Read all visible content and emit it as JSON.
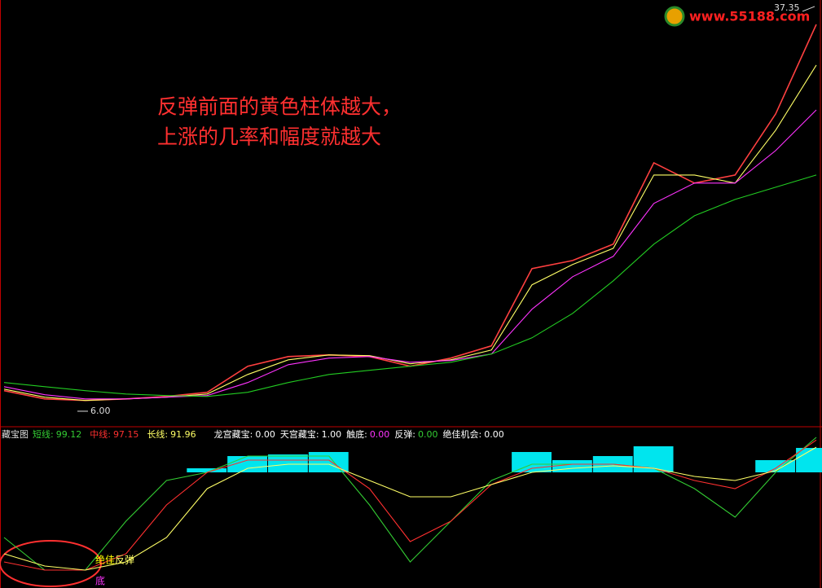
{
  "chart_data": [
    {
      "type": "line",
      "ylim": [
        4.92,
        37.98
      ],
      "series": [
        {
          "color": "#ff4040",
          "values": [
            7.6,
            6.96,
            6.84,
            6.96,
            7.15,
            7.47,
            9.5,
            10.25,
            10.38,
            10.25,
            9.5,
            10.13,
            11.08,
            17.09,
            17.72,
            18.99,
            25.32,
            23.74,
            24.37,
            29.12,
            36.08
          ]
        },
        {
          "color": "#ffff66",
          "values": [
            7.72,
            7.09,
            6.84,
            6.96,
            7.09,
            7.34,
            8.86,
            10.0,
            10.38,
            10.32,
            9.69,
            10.0,
            10.76,
            15.83,
            17.41,
            18.67,
            24.37,
            24.37,
            23.74,
            27.85,
            32.92
          ]
        },
        {
          "color": "#ff33ff",
          "values": [
            7.91,
            7.28,
            6.96,
            6.96,
            7.09,
            7.22,
            8.23,
            9.62,
            10.13,
            10.25,
            9.81,
            9.94,
            10.45,
            13.93,
            16.46,
            18.04,
            22.16,
            23.74,
            23.74,
            26.27,
            29.43
          ]
        },
        {
          "color": "#22cc22",
          "values": [
            8.23,
            7.91,
            7.6,
            7.34,
            7.22,
            7.15,
            7.47,
            8.23,
            8.86,
            9.18,
            9.5,
            9.81,
            10.45,
            11.71,
            13.61,
            16.14,
            18.99,
            21.2,
            22.47,
            23.42,
            24.37
          ]
        }
      ],
      "max_marker": 37.35,
      "min_marker": {
        "value": 6,
        "label": "6.00"
      },
      "notes": [
        "反弹前面的黄色柱体越大，",
        "上涨的几率和幅度就越大"
      ]
    },
    {
      "type": "line",
      "title": "藏宝图",
      "ylim": [
        -10,
        105
      ],
      "series": [
        {
          "name": "短线:",
          "color": "#33cc33",
          "values": [
            26.57,
            2.98,
            2.98,
            38.36,
            67.85,
            73.75,
            85.54,
            85.54,
            85.54,
            50.16,
            8.88,
            38.36,
            67.85,
            79.64,
            79.64,
            79.64,
            76.69,
            61.95,
            41.31,
            73.75,
            99.12
          ]
        },
        {
          "name": "中线:",
          "color": "#ff3030",
          "values": [
            8.88,
            2.98,
            2.98,
            14.78,
            50.16,
            73.75,
            82.59,
            82.59,
            82.59,
            61.95,
            23.62,
            38.36,
            64.9,
            76.69,
            79.64,
            79.64,
            76.69,
            67.85,
            61.95,
            76.69,
            97.15
          ]
        },
        {
          "name": "长线:",
          "color": "#ffff66",
          "values": [
            14.78,
            5.93,
            2.98,
            8.88,
            26.57,
            61.95,
            76.69,
            79.64,
            79.64,
            67.85,
            56.05,
            56.05,
            64.9,
            73.75,
            76.69,
            78.46,
            76.69,
            70.8,
            67.85,
            74.93,
            91.96
          ]
        },
        {
          "kind": "bar",
          "color": "#00e5ee",
          "base": 73.75,
          "values": [
            null,
            null,
            null,
            null,
            null,
            76.69,
            85.54,
            86.72,
            88.49,
            null,
            null,
            null,
            null,
            88.49,
            82.59,
            85.54,
            92.62,
            null,
            null,
            82.59,
            91.44
          ]
        }
      ],
      "indicators": [
        {
          "name": "龙宫藏宝:",
          "value": 0,
          "value_label": "0.00",
          "color": "#ffffff"
        },
        {
          "name": "天宫藏宝:",
          "value": 1,
          "value_label": "1.00",
          "color": "#ffffff"
        },
        {
          "name": "触底:",
          "value": 0,
          "value_label": "0.00",
          "color": "#ff33ff"
        },
        {
          "name": "反弹:",
          "value": 0,
          "value_label": "0.00",
          "color": "#33cc33"
        },
        {
          "name": "绝佳机会:",
          "value": 0,
          "value_label": "0.00",
          "color": "#ffffff"
        }
      ],
      "annotations": [
        {
          "text": "绝佳",
          "color": "#ffff00"
        },
        {
          "text": "反弹",
          "color": "#ffff66"
        },
        {
          "text": "底",
          "color": "#ff33ff"
        }
      ]
    }
  ],
  "watermark": "www.55188.com"
}
